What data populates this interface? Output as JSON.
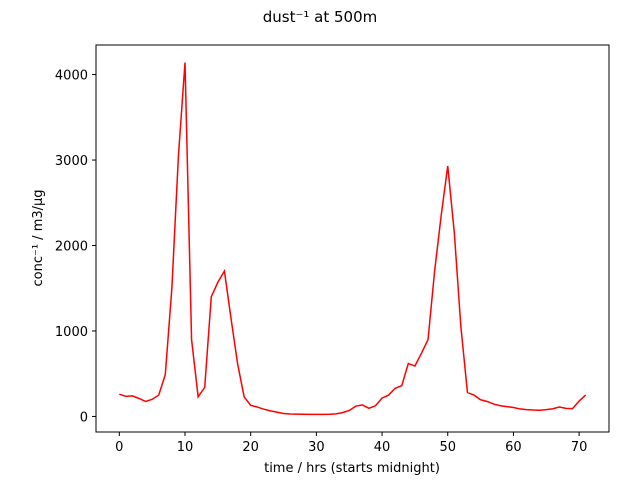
{
  "chart_data": {
    "type": "line",
    "title": "dust⁻¹ at 500m",
    "x_label": "time / hrs (starts midnight)",
    "y_label": "conc⁻¹ / m3/µg",
    "x": [
      0,
      1,
      2,
      3,
      4,
      5,
      6,
      7,
      8,
      9,
      10,
      11,
      12,
      13,
      14,
      15,
      16,
      17,
      18,
      19,
      20,
      21,
      22,
      23,
      24,
      25,
      26,
      27,
      28,
      29,
      30,
      31,
      32,
      33,
      34,
      35,
      36,
      37,
      38,
      39,
      40,
      41,
      42,
      43,
      44,
      45,
      46,
      47,
      48,
      49,
      50,
      51,
      52,
      53,
      54,
      55,
      56,
      57,
      58,
      59,
      60,
      61,
      62,
      63,
      64,
      65,
      66,
      67,
      68,
      69,
      70,
      71
    ],
    "series": [
      {
        "color": "#ff0000",
        "values": [
          260,
          235,
          240,
          210,
          175,
          200,
          250,
          490,
          1500,
          3050,
          4140,
          900,
          230,
          340,
          1400,
          1570,
          1700,
          1150,
          620,
          230,
          130,
          110,
          85,
          65,
          50,
          35,
          28,
          27,
          25,
          24,
          24,
          24,
          25,
          30,
          45,
          70,
          120,
          135,
          95,
          125,
          215,
          250,
          330,
          360,
          620,
          590,
          740,
          900,
          1700,
          2350,
          2930,
          2150,
          1050,
          280,
          250,
          195,
          175,
          145,
          125,
          115,
          105,
          88,
          80,
          75,
          73,
          80,
          90,
          110,
          95,
          92,
          180,
          250
        ]
      }
    ],
    "xlim": [
      -3.55,
      74.55
    ],
    "ylim": [
      -182,
      4346
    ],
    "xticks": [
      0,
      10,
      20,
      30,
      40,
      50,
      60,
      70
    ],
    "yticks": [
      0,
      1000,
      2000,
      3000,
      4000
    ]
  }
}
